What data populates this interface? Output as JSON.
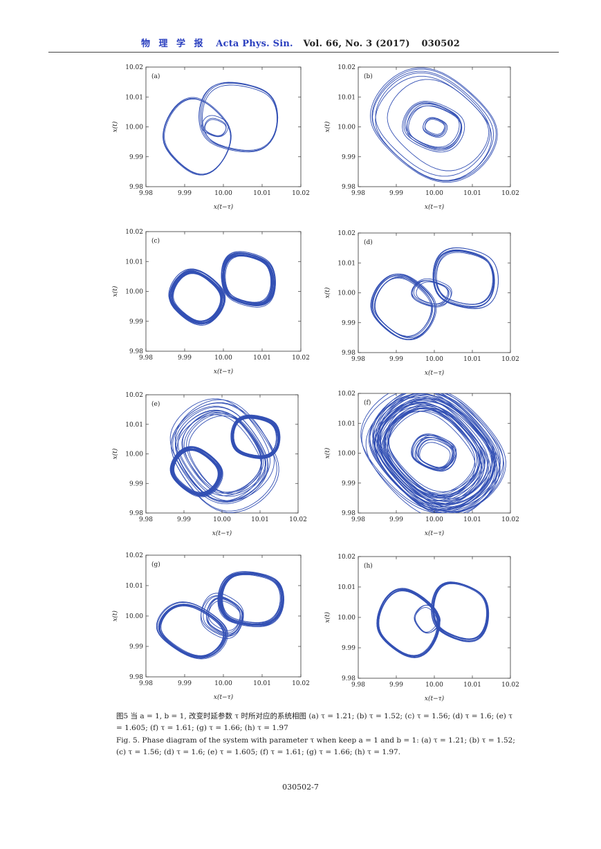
{
  "header": {
    "journal_cn": "物 理 学 报",
    "journal_en": "Acta Phys. Sin.",
    "volume": "Vol. 66, No. 3 (2017)",
    "article_code": "030502"
  },
  "axes_text": {
    "xlabel": "x(t−τ)",
    "ylabel": "x(t)"
  },
  "panels": [
    {
      "label": "(a)",
      "xticks": [
        "9.98",
        "9.99",
        "10.00",
        "10.01",
        "10.02"
      ],
      "yticks": [
        "10.02",
        "10.01",
        "10.00",
        "9.99",
        "9.98"
      ]
    },
    {
      "label": "(b)",
      "xticks": [
        "9.98",
        "9.99",
        "10.00",
        "10.01",
        "10.02"
      ],
      "yticks": [
        "10.02",
        "10.01",
        "10.00",
        "9.99",
        "9.98"
      ]
    },
    {
      "label": "(c)",
      "xticks": [
        "9.98",
        "9.99",
        "10.00",
        "10.01",
        "10.02"
      ],
      "yticks": [
        "10.02",
        "10.01",
        "10.00",
        "9.99",
        "9.98"
      ]
    },
    {
      "label": "(d)",
      "xticks": [
        "9.98",
        "9.99",
        "10.00",
        "10.01",
        "10.02"
      ],
      "yticks": [
        "10.02",
        "10.01",
        "10.00",
        "9.99",
        "9.98"
      ]
    },
    {
      "label": "(e)",
      "xticks": [
        "9.98",
        "9.99",
        "10.00",
        "10.01",
        "10.02"
      ],
      "yticks": [
        "10.02",
        "10.01",
        "10.00",
        "9.99",
        "9.98"
      ]
    },
    {
      "label": "(f)",
      "xticks": [
        "9.98",
        "9.99",
        "10.00",
        "10.01",
        "10.02"
      ],
      "yticks": [
        "10.02",
        "10.01",
        "10.00",
        "9.99",
        "9.98"
      ]
    },
    {
      "label": "(g)",
      "xticks": [
        "9.98",
        "9.99",
        "10.00",
        "10.01",
        "10.02"
      ],
      "yticks": [
        "10.02",
        "10.01",
        "10.00",
        "9.99",
        "9.98"
      ]
    },
    {
      "label": "(h)",
      "xticks": [
        "9.98",
        "9.99",
        "10.00",
        "10.01",
        "10.02"
      ],
      "yticks": [
        "10.02",
        "10.01",
        "10.00",
        "9.99",
        "9.98"
      ]
    }
  ],
  "caption_cn": "图5 当 a = 1, b = 1, 改变时延参数 τ 时所对应的系统相图 (a) τ = 1.21; (b) τ = 1.52; (c) τ = 1.56; (d) τ = 1.6; (e) τ = 1.605; (f) τ = 1.61; (g) τ = 1.66; (h) τ = 1.97",
  "caption_en": "Fig. 5. Phase diagram of the system with parameter τ when keep a = 1 and b = 1: (a) τ = 1.21; (b) τ = 1.52; (c) τ = 1.56; (d) τ = 1.6; (e) τ = 1.605; (f) τ = 1.61; (g) τ = 1.66; (h) τ = 1.97.",
  "page_number": "030502-7",
  "colors": {
    "trajectory": "#3350b4",
    "header_blue": "#2a3fbf"
  }
}
